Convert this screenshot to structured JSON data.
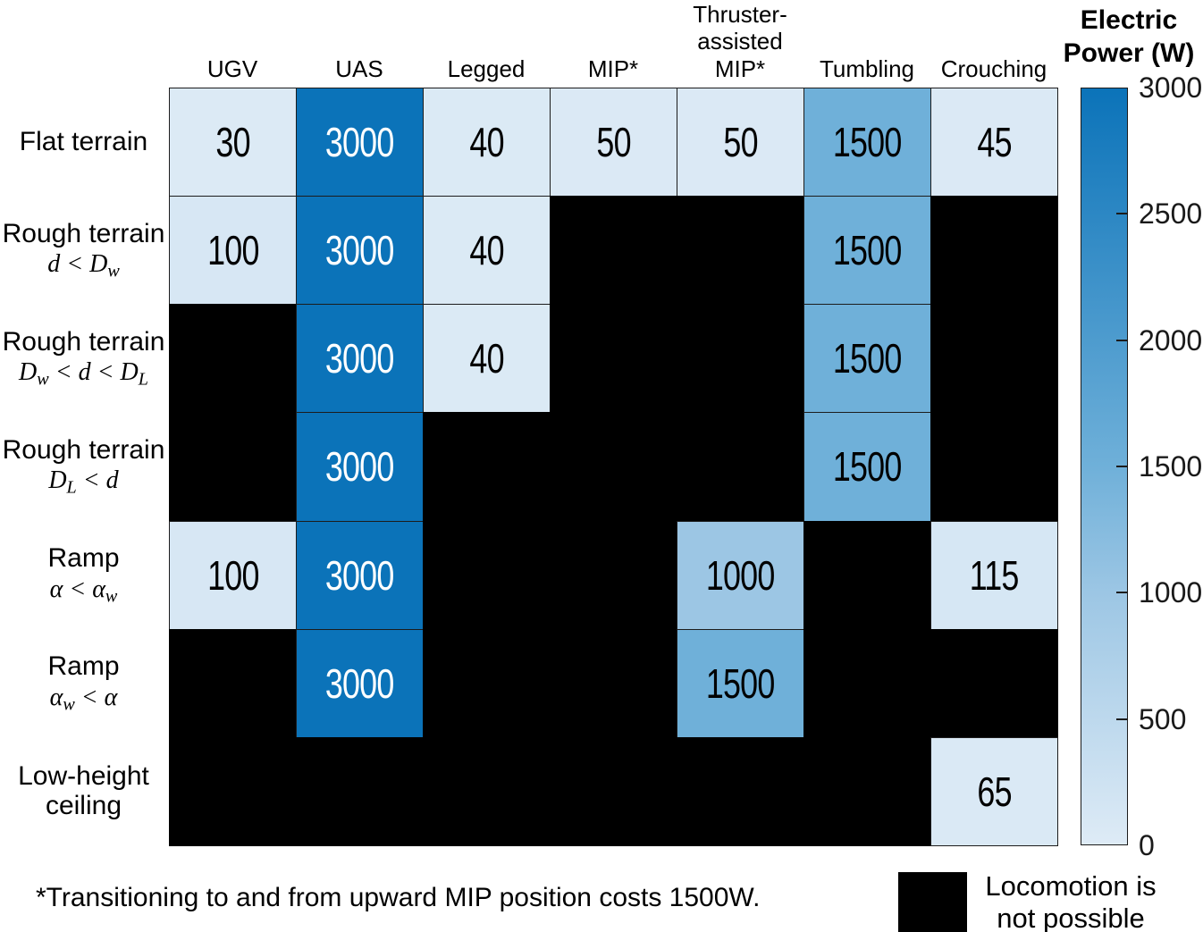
{
  "chart_data": {
    "type": "heatmap",
    "columns": [
      "UGV",
      "UAS",
      "Legged",
      "MIP*",
      "Thruster-\nassisted\nMIP*",
      "Tumbling",
      "Crouching"
    ],
    "rows": [
      {
        "label": "Flat terrain",
        "sub": ""
      },
      {
        "label": "Rough terrain",
        "sub": "d < D_w"
      },
      {
        "label": "Rough terrain",
        "sub": "D_w < d < D_L"
      },
      {
        "label": "Rough terrain",
        "sub": "D_L < d"
      },
      {
        "label": "Ramp",
        "sub": "α < α_w"
      },
      {
        "label": "Ramp",
        "sub": "α_w < α"
      },
      {
        "label": "Low-height\nceiling",
        "sub": ""
      }
    ],
    "values": [
      [
        30,
        3000,
        40,
        50,
        50,
        1500,
        45
      ],
      [
        100,
        3000,
        40,
        null,
        null,
        1500,
        null
      ],
      [
        null,
        3000,
        40,
        null,
        null,
        1500,
        null
      ],
      [
        null,
        3000,
        null,
        null,
        null,
        1500,
        null
      ],
      [
        100,
        3000,
        null,
        null,
        1000,
        null,
        115
      ],
      [
        null,
        3000,
        null,
        null,
        1500,
        null,
        null
      ],
      [
        null,
        null,
        null,
        null,
        null,
        null,
        65
      ]
    ],
    "colorbar": {
      "title": "Electric Power (W)",
      "min": 0,
      "max": 3000,
      "ticks": [
        0,
        500,
        1000,
        1500,
        2000,
        2500,
        3000
      ]
    },
    "colormap_stops": [
      [
        0,
        "#deebf6"
      ],
      [
        1000,
        "#9cc6e4"
      ],
      [
        1500,
        "#6fb0d9"
      ],
      [
        3000,
        "#0b73b9"
      ]
    ],
    "not_possible_label": "Locomotion is\nnot possible",
    "not_possible_color": "#000000",
    "footnote": "*Transitioning to and from upward MIP position costs 1500W."
  }
}
